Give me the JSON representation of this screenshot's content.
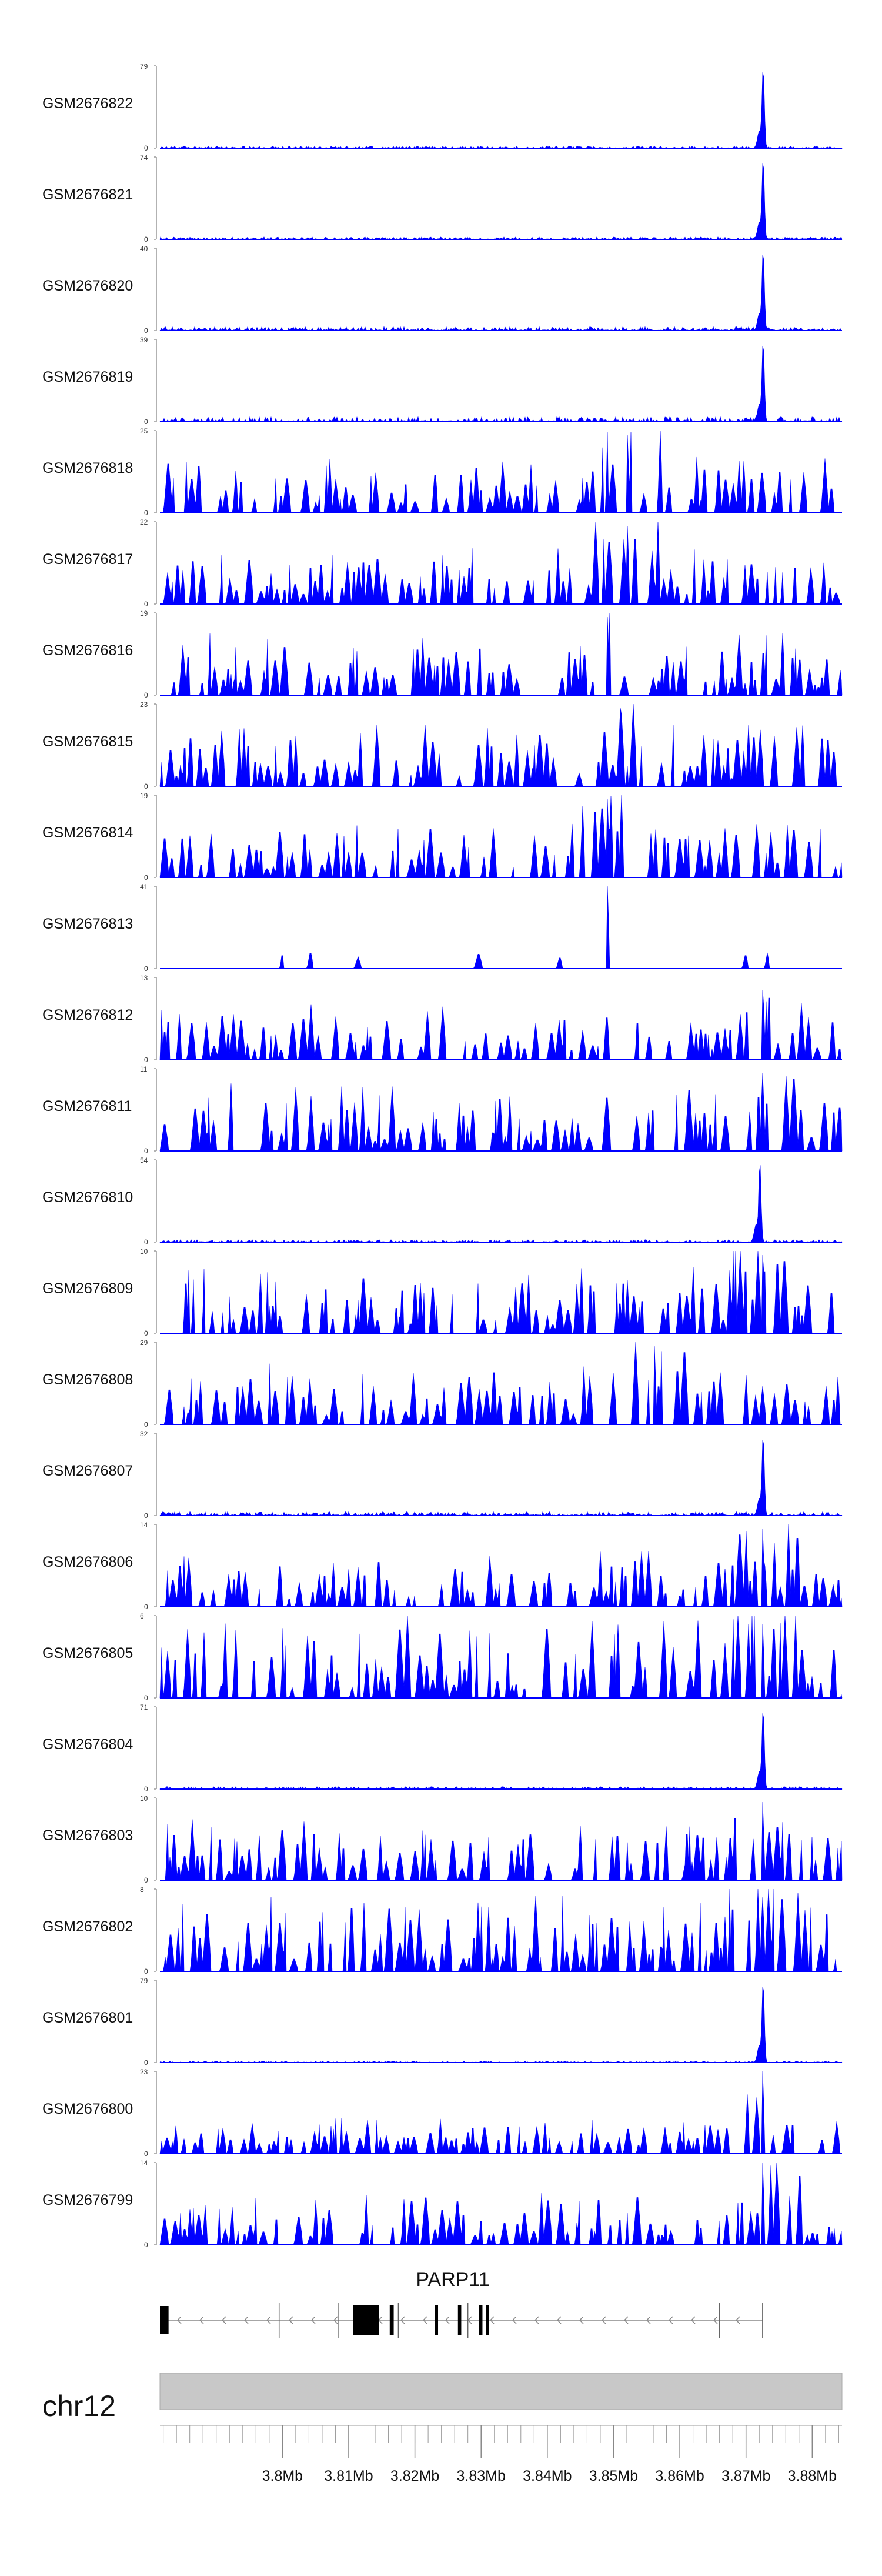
{
  "chart_data": {
    "type": "area",
    "title": "",
    "region": {
      "chromosome": "chr12",
      "gene": "PARP11",
      "start_mb": 3.7815,
      "end_mb": 3.8845
    },
    "feature_color": "#0000ff",
    "x_axis": {
      "unit": "Mb",
      "ticks": [
        3.8,
        3.81,
        3.82,
        3.83,
        3.84,
        3.85,
        3.86,
        3.87,
        3.88
      ],
      "tick_labels": [
        "3.8Mb",
        "3.81Mb",
        "3.82Mb",
        "3.83Mb",
        "3.84Mb",
        "3.85Mb",
        "3.86Mb",
        "3.87Mb",
        "3.88Mb"
      ]
    },
    "tracks": [
      {
        "name": "GSM2676822",
        "ymax": 79,
        "ymax_label": "79",
        "ymin_label": "0",
        "profile": "peak",
        "peak_mb": 3.8725,
        "peak_frac": 1.0,
        "noise_frac": 0.04
      },
      {
        "name": "GSM2676821",
        "ymax": 74,
        "ymax_label": "74",
        "ymin_label": "0",
        "profile": "peak",
        "peak_mb": 3.8725,
        "peak_frac": 1.0,
        "noise_frac": 0.05
      },
      {
        "name": "GSM2676820",
        "ymax": 40,
        "ymax_label": "40",
        "ymin_label": "0",
        "profile": "peak",
        "peak_mb": 3.8725,
        "peak_frac": 1.0,
        "noise_frac": 0.08
      },
      {
        "name": "GSM2676819",
        "ymax": 39,
        "ymax_label": "39",
        "ymin_label": "0",
        "profile": "peak",
        "peak_mb": 3.8725,
        "peak_frac": 1.0,
        "noise_frac": 0.1
      },
      {
        "name": "GSM2676818",
        "ymax": 25,
        "ymax_label": "25",
        "ymin_label": "0",
        "profile": "dense",
        "hot_mb": 3.852,
        "peak_frac": 0.95,
        "noise_frac": 0.35
      },
      {
        "name": "GSM2676817",
        "ymax": 22,
        "ymax_label": "22",
        "ymin_label": "0",
        "profile": "dense",
        "hot_mb": 3.852,
        "peak_frac": 0.95,
        "noise_frac": 0.35
      },
      {
        "name": "GSM2676816",
        "ymax": 19,
        "ymax_label": "19",
        "ymin_label": "0",
        "profile": "dense",
        "hot_mb": 3.849,
        "peak_frac": 0.95,
        "noise_frac": 0.4
      },
      {
        "name": "GSM2676815",
        "ymax": 23,
        "ymax_label": "23",
        "ymin_label": "0",
        "profile": "dense",
        "hot_mb": 3.851,
        "peak_frac": 0.95,
        "noise_frac": 0.4
      },
      {
        "name": "GSM2676814",
        "ymax": 19,
        "ymax_label": "19",
        "ymin_label": "0",
        "profile": "dense",
        "hot_mb": 3.849,
        "peak_frac": 0.95,
        "noise_frac": 0.35
      },
      {
        "name": "GSM2676813",
        "ymax": 41,
        "ymax_label": "41",
        "ymin_label": "0",
        "profile": "sparse",
        "hot_mb": 3.849,
        "peak_frac": 1.0,
        "noise_frac": 0.15
      },
      {
        "name": "GSM2676812",
        "ymax": 13,
        "ymax_label": "13",
        "ymin_label": "0",
        "profile": "dense",
        "hot_mb": 3.8725,
        "peak_frac": 0.85,
        "noise_frac": 0.35
      },
      {
        "name": "GSM2676811",
        "ymax": 11,
        "ymax_label": "11",
        "ymin_label": "0",
        "profile": "dense",
        "hot_mb": 3.8725,
        "peak_frac": 0.95,
        "noise_frac": 0.45
      },
      {
        "name": "GSM2676810",
        "ymax": 54,
        "ymax_label": "54",
        "ymin_label": "0",
        "profile": "peak",
        "peak_mb": 3.872,
        "peak_frac": 1.0,
        "noise_frac": 0.05
      },
      {
        "name": "GSM2676809",
        "ymax": 10,
        "ymax_label": "10",
        "ymin_label": "0",
        "profile": "dense",
        "hot_mb": 3.8725,
        "peak_frac": 0.95,
        "noise_frac": 0.45
      },
      {
        "name": "GSM2676808",
        "ymax": 29,
        "ymax_label": "29",
        "ymin_label": "0",
        "profile": "dense",
        "hot_mb": 3.856,
        "peak_frac": 0.95,
        "noise_frac": 0.4
      },
      {
        "name": "GSM2676807",
        "ymax": 32,
        "ymax_label": "32",
        "ymin_label": "0",
        "profile": "peak",
        "peak_mb": 3.8725,
        "peak_frac": 1.0,
        "noise_frac": 0.08
      },
      {
        "name": "GSM2676806",
        "ymax": 14,
        "ymax_label": "14",
        "ymin_label": "0",
        "profile": "dense",
        "hot_mb": 3.8725,
        "peak_frac": 0.95,
        "noise_frac": 0.35
      },
      {
        "name": "GSM2676805",
        "ymax": 6,
        "ymax_label": "6",
        "ymin_label": "0",
        "profile": "dense",
        "hot_mb": 3.8725,
        "peak_frac": 0.9,
        "noise_frac": 0.6
      },
      {
        "name": "GSM2676804",
        "ymax": 71,
        "ymax_label": "71",
        "ymin_label": "0",
        "profile": "peak",
        "peak_mb": 3.8725,
        "peak_frac": 1.0,
        "noise_frac": 0.05
      },
      {
        "name": "GSM2676803",
        "ymax": 10,
        "ymax_label": "10",
        "ymin_label": "0",
        "profile": "dense",
        "hot_mb": 3.8725,
        "peak_frac": 0.95,
        "noise_frac": 0.4
      },
      {
        "name": "GSM2676802",
        "ymax": 8,
        "ymax_label": "8",
        "ymin_label": "0",
        "profile": "dense",
        "hot_mb": 3.8725,
        "peak_frac": 0.9,
        "noise_frac": 0.5
      },
      {
        "name": "GSM2676801",
        "ymax": 79,
        "ymax_label": "79",
        "ymin_label": "0",
        "profile": "peak",
        "peak_mb": 3.8725,
        "peak_frac": 1.0,
        "noise_frac": 0.03
      },
      {
        "name": "GSM2676800",
        "ymax": 23,
        "ymax_label": "23",
        "ymin_label": "0",
        "profile": "dense",
        "hot_mb": 3.8725,
        "peak_frac": 1.0,
        "noise_frac": 0.2
      },
      {
        "name": "GSM2676799",
        "ymax": 14,
        "ymax_label": "14",
        "ymin_label": "0",
        "profile": "dense",
        "hot_mb": 3.8725,
        "peak_frac": 1.0,
        "noise_frac": 0.35
      }
    ],
    "gene_model": {
      "name": "PARP11",
      "strand": "-",
      "tx_start_mb": 3.7815,
      "tx_end_mb": 3.8725,
      "exons": [
        {
          "start_mb": 3.7815,
          "end_mb": 3.7828,
          "type": "utr"
        },
        {
          "start_mb": 3.8107,
          "end_mb": 3.8146,
          "type": "coding"
        },
        {
          "start_mb": 3.8162,
          "end_mb": 3.8168,
          "type": "coding"
        },
        {
          "start_mb": 3.823,
          "end_mb": 3.8235,
          "type": "coding"
        },
        {
          "start_mb": 3.8265,
          "end_mb": 3.827,
          "type": "coding"
        },
        {
          "start_mb": 3.8297,
          "end_mb": 3.8302,
          "type": "coding"
        },
        {
          "start_mb": 3.8307,
          "end_mb": 3.8312,
          "type": "coding"
        }
      ],
      "thin_ticks_mb": [
        3.7995,
        3.8085,
        3.8175,
        3.828,
        3.866,
        3.8725
      ]
    }
  }
}
